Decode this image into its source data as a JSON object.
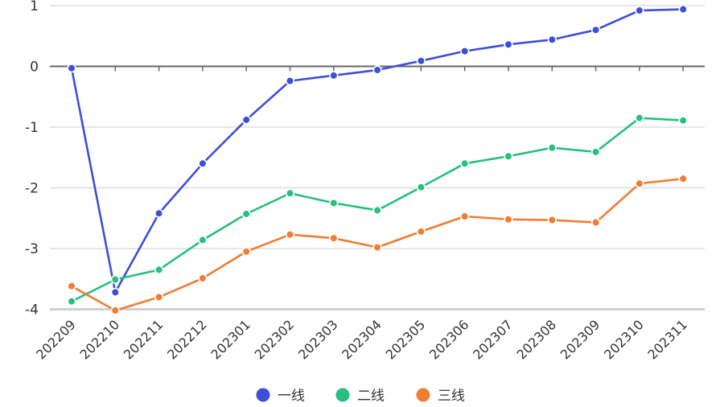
{
  "chart_data": {
    "type": "line",
    "categories": [
      "202209",
      "202210",
      "202211",
      "202212",
      "202301",
      "202302",
      "202303",
      "202304",
      "202305",
      "202306",
      "202307",
      "202308",
      "202309",
      "202310",
      "202311"
    ],
    "series": [
      {
        "name": "一线",
        "color": "#3d4fd6",
        "values": [
          -0.03,
          -3.72,
          -2.42,
          -1.6,
          -0.88,
          -0.24,
          -0.15,
          -0.06,
          0.09,
          0.25,
          0.36,
          0.44,
          0.6,
          0.92,
          0.94
        ]
      },
      {
        "name": "二线",
        "color": "#27c07e",
        "values": [
          -3.87,
          -3.51,
          -3.35,
          -2.86,
          -2.43,
          -2.09,
          -2.25,
          -2.37,
          -1.99,
          -1.6,
          -1.48,
          -1.34,
          -1.41,
          -0.85,
          -0.89
        ]
      },
      {
        "name": "三线",
        "color": "#ef7d33",
        "values": [
          -3.62,
          -4.02,
          -3.8,
          -3.49,
          -3.05,
          -2.77,
          -2.83,
          -2.98,
          -2.72,
          -2.47,
          -2.52,
          -2.53,
          -2.57,
          -1.93,
          -1.85
        ]
      }
    ],
    "y_ticks": [
      1,
      0,
      -1,
      -2,
      -3,
      -4
    ],
    "ylim": [
      -4,
      1
    ],
    "grid": true,
    "legend_position": "bottom-center"
  }
}
